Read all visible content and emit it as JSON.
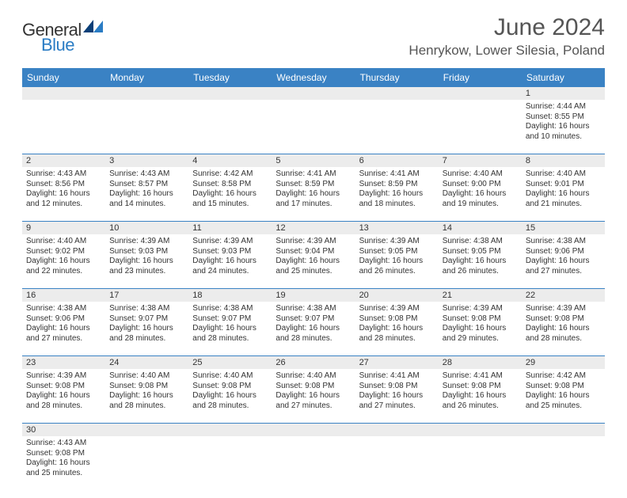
{
  "logo": {
    "text1": "General",
    "text2": "Blue"
  },
  "title": "June 2024",
  "location": "Henrykow, Lower Silesia, Poland",
  "colors": {
    "header_bg": "#3a82c4",
    "header_text": "#ffffff",
    "daynum_bg": "#ececec",
    "row_border": "#3a82c4",
    "text": "#333333",
    "logo_blue": "#2a7cc4"
  },
  "weekdays": [
    "Sunday",
    "Monday",
    "Tuesday",
    "Wednesday",
    "Thursday",
    "Friday",
    "Saturday"
  ],
  "weeks": [
    {
      "days": [
        null,
        null,
        null,
        null,
        null,
        null,
        {
          "n": "1",
          "sunrise": "4:44 AM",
          "sunset": "8:55 PM",
          "daylight": "16 hours and 10 minutes."
        }
      ]
    },
    {
      "days": [
        {
          "n": "2",
          "sunrise": "4:43 AM",
          "sunset": "8:56 PM",
          "daylight": "16 hours and 12 minutes."
        },
        {
          "n": "3",
          "sunrise": "4:43 AM",
          "sunset": "8:57 PM",
          "daylight": "16 hours and 14 minutes."
        },
        {
          "n": "4",
          "sunrise": "4:42 AM",
          "sunset": "8:58 PM",
          "daylight": "16 hours and 15 minutes."
        },
        {
          "n": "5",
          "sunrise": "4:41 AM",
          "sunset": "8:59 PM",
          "daylight": "16 hours and 17 minutes."
        },
        {
          "n": "6",
          "sunrise": "4:41 AM",
          "sunset": "8:59 PM",
          "daylight": "16 hours and 18 minutes."
        },
        {
          "n": "7",
          "sunrise": "4:40 AM",
          "sunset": "9:00 PM",
          "daylight": "16 hours and 19 minutes."
        },
        {
          "n": "8",
          "sunrise": "4:40 AM",
          "sunset": "9:01 PM",
          "daylight": "16 hours and 21 minutes."
        }
      ]
    },
    {
      "days": [
        {
          "n": "9",
          "sunrise": "4:40 AM",
          "sunset": "9:02 PM",
          "daylight": "16 hours and 22 minutes."
        },
        {
          "n": "10",
          "sunrise": "4:39 AM",
          "sunset": "9:03 PM",
          "daylight": "16 hours and 23 minutes."
        },
        {
          "n": "11",
          "sunrise": "4:39 AM",
          "sunset": "9:03 PM",
          "daylight": "16 hours and 24 minutes."
        },
        {
          "n": "12",
          "sunrise": "4:39 AM",
          "sunset": "9:04 PM",
          "daylight": "16 hours and 25 minutes."
        },
        {
          "n": "13",
          "sunrise": "4:39 AM",
          "sunset": "9:05 PM",
          "daylight": "16 hours and 26 minutes."
        },
        {
          "n": "14",
          "sunrise": "4:38 AM",
          "sunset": "9:05 PM",
          "daylight": "16 hours and 26 minutes."
        },
        {
          "n": "15",
          "sunrise": "4:38 AM",
          "sunset": "9:06 PM",
          "daylight": "16 hours and 27 minutes."
        }
      ]
    },
    {
      "days": [
        {
          "n": "16",
          "sunrise": "4:38 AM",
          "sunset": "9:06 PM",
          "daylight": "16 hours and 27 minutes."
        },
        {
          "n": "17",
          "sunrise": "4:38 AM",
          "sunset": "9:07 PM",
          "daylight": "16 hours and 28 minutes."
        },
        {
          "n": "18",
          "sunrise": "4:38 AM",
          "sunset": "9:07 PM",
          "daylight": "16 hours and 28 minutes."
        },
        {
          "n": "19",
          "sunrise": "4:38 AM",
          "sunset": "9:07 PM",
          "daylight": "16 hours and 28 minutes."
        },
        {
          "n": "20",
          "sunrise": "4:39 AM",
          "sunset": "9:08 PM",
          "daylight": "16 hours and 28 minutes."
        },
        {
          "n": "21",
          "sunrise": "4:39 AM",
          "sunset": "9:08 PM",
          "daylight": "16 hours and 29 minutes."
        },
        {
          "n": "22",
          "sunrise": "4:39 AM",
          "sunset": "9:08 PM",
          "daylight": "16 hours and 28 minutes."
        }
      ]
    },
    {
      "days": [
        {
          "n": "23",
          "sunrise": "4:39 AM",
          "sunset": "9:08 PM",
          "daylight": "16 hours and 28 minutes."
        },
        {
          "n": "24",
          "sunrise": "4:40 AM",
          "sunset": "9:08 PM",
          "daylight": "16 hours and 28 minutes."
        },
        {
          "n": "25",
          "sunrise": "4:40 AM",
          "sunset": "9:08 PM",
          "daylight": "16 hours and 28 minutes."
        },
        {
          "n": "26",
          "sunrise": "4:40 AM",
          "sunset": "9:08 PM",
          "daylight": "16 hours and 27 minutes."
        },
        {
          "n": "27",
          "sunrise": "4:41 AM",
          "sunset": "9:08 PM",
          "daylight": "16 hours and 27 minutes."
        },
        {
          "n": "28",
          "sunrise": "4:41 AM",
          "sunset": "9:08 PM",
          "daylight": "16 hours and 26 minutes."
        },
        {
          "n": "29",
          "sunrise": "4:42 AM",
          "sunset": "9:08 PM",
          "daylight": "16 hours and 25 minutes."
        }
      ]
    },
    {
      "days": [
        {
          "n": "30",
          "sunrise": "4:43 AM",
          "sunset": "9:08 PM",
          "daylight": "16 hours and 25 minutes."
        },
        null,
        null,
        null,
        null,
        null,
        null
      ]
    }
  ],
  "labels": {
    "sunrise": "Sunrise: ",
    "sunset": "Sunset: ",
    "daylight": "Daylight: "
  }
}
